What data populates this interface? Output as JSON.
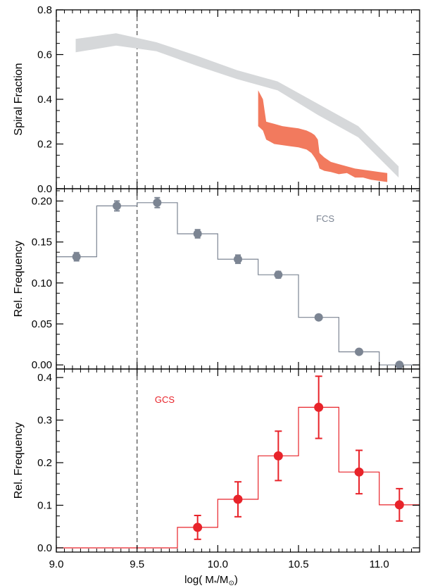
{
  "figure": {
    "xlabel": "log( M",
    "xlabel_sub": "*",
    "xlabel_tail": "/M",
    "xlabel_sun_sub": "⊙",
    "xlabel_close": ")"
  },
  "chart_data": [
    {
      "type": "area",
      "panel": "top",
      "ylabel": "Spiral Fraction",
      "xlim": [
        9.0,
        11.25
      ],
      "ylim": [
        0.0,
        0.8
      ],
      "xticks": [
        "9.0",
        "9.5",
        "10.0",
        "10.5",
        "11.0"
      ],
      "yticks": [
        "0.0",
        "0.2",
        "0.4",
        "0.6",
        "0.8"
      ],
      "vline": 9.5,
      "series": [
        {
          "color": "#d6d8da",
          "x": [
            9.12,
            9.37,
            9.62,
            9.87,
            10.12,
            10.37,
            10.62,
            10.87,
            11.12
          ],
          "lower": [
            0.61,
            0.64,
            0.615,
            0.55,
            0.49,
            0.44,
            0.33,
            0.23,
            0.05
          ],
          "upper": [
            0.67,
            0.695,
            0.655,
            0.595,
            0.53,
            0.48,
            0.38,
            0.28,
            0.1
          ]
        },
        {
          "color": "#f27a5e",
          "x": [
            10.25,
            10.28,
            10.3,
            10.35,
            10.4,
            10.45,
            10.5,
            10.55,
            10.58,
            10.6,
            10.62,
            10.63,
            10.66,
            10.7,
            10.75,
            10.8,
            10.85,
            10.9,
            10.95,
            11.0,
            11.05
          ],
          "lower": [
            0.28,
            0.26,
            0.22,
            0.2,
            0.195,
            0.19,
            0.185,
            0.175,
            0.16,
            0.14,
            0.115,
            0.09,
            0.08,
            0.075,
            0.065,
            0.07,
            0.05,
            0.05,
            0.04,
            0.035,
            0.03
          ],
          "upper": [
            0.44,
            0.4,
            0.3,
            0.29,
            0.28,
            0.275,
            0.27,
            0.26,
            0.25,
            0.24,
            0.22,
            0.16,
            0.14,
            0.12,
            0.11,
            0.1,
            0.09,
            0.085,
            0.08,
            0.075,
            0.07
          ]
        }
      ]
    },
    {
      "type": "line",
      "panel": "middle",
      "ylabel": "Rel. Frequency",
      "label": "FCS",
      "color": "#7c8593",
      "xlim": [
        9.0,
        11.25
      ],
      "ylim": [
        -0.005,
        0.215
      ],
      "yticks": [
        "0.00",
        "0.05",
        "0.10",
        "0.15",
        "0.20"
      ],
      "vline": 9.5,
      "bin_edges": [
        9.0,
        9.25,
        9.5,
        9.75,
        10.0,
        10.25,
        10.5,
        10.75,
        11.0,
        11.25
      ],
      "x": [
        9.125,
        9.375,
        9.625,
        9.875,
        10.125,
        10.375,
        10.625,
        10.875,
        11.125
      ],
      "values": [
        0.132,
        0.194,
        0.198,
        0.16,
        0.129,
        0.11,
        0.058,
        0.016,
        0.0
      ],
      "errors": [
        0.005,
        0.006,
        0.006,
        0.005,
        0.005,
        0.004,
        0.003,
        0.002,
        0.001
      ]
    },
    {
      "type": "line",
      "panel": "bottom",
      "ylabel": "Rel. Frequency",
      "label": "GCS",
      "color": "#e8232a",
      "xlim": [
        9.0,
        11.25
      ],
      "ylim": [
        -0.01,
        0.42
      ],
      "yticks": [
        "0.0",
        "0.1",
        "0.2",
        "0.3",
        "0.4"
      ],
      "vline": 9.5,
      "bin_edges": [
        9.0,
        9.25,
        9.5,
        9.75,
        10.0,
        10.25,
        10.5,
        10.75,
        11.0,
        11.25
      ],
      "x": [
        9.125,
        9.375,
        9.625,
        9.875,
        10.125,
        10.375,
        10.625,
        10.875,
        11.125
      ],
      "values": [
        0.0,
        0.0,
        0.0,
        0.048,
        0.114,
        0.216,
        0.33,
        0.178,
        0.101
      ],
      "errors": [
        0.0,
        0.0,
        0.0,
        0.028,
        0.041,
        0.058,
        0.073,
        0.051,
        0.038
      ],
      "show_points": [
        false,
        false,
        false,
        true,
        true,
        true,
        true,
        true,
        true
      ]
    }
  ]
}
